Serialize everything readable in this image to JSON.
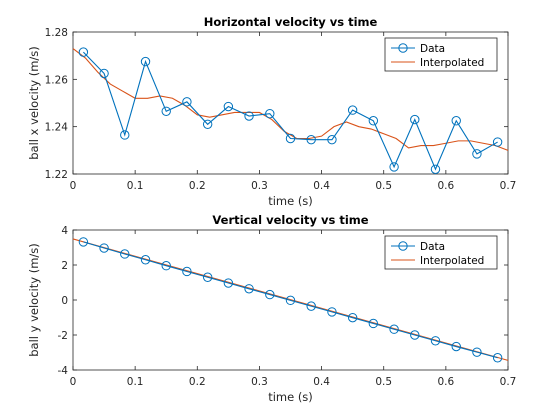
{
  "colors": {
    "data": "#0072BD",
    "interp": "#D95319",
    "axis": "#262626"
  },
  "chart_data": [
    {
      "type": "line",
      "title": "Horizontal velocity vs time",
      "xlabel": "time (s)",
      "ylabel": "ball x velocity (m/s)",
      "xlim": [
        0,
        0.7
      ],
      "ylim": [
        1.22,
        1.28
      ],
      "xticks": [
        0,
        0.1,
        0.2,
        0.3,
        0.4,
        0.5,
        0.6,
        0.7
      ],
      "xtick_labels": [
        "0",
        "0.1",
        "0.2",
        "0.3",
        "0.4",
        "0.5",
        "0.6",
        "0.7"
      ],
      "yticks": [
        1.22,
        1.24,
        1.26,
        1.28
      ],
      "ytick_labels": [
        "1.22",
        "1.24",
        "1.26",
        "1.28"
      ],
      "legend_position": "top-right",
      "series": [
        {
          "name": "Data",
          "style": "line-circle",
          "x": [
            0.0167,
            0.05,
            0.0833,
            0.1167,
            0.15,
            0.1833,
            0.2167,
            0.25,
            0.2833,
            0.3167,
            0.35,
            0.3833,
            0.4167,
            0.45,
            0.4833,
            0.5167,
            0.55,
            0.5833,
            0.6167,
            0.65,
            0.6833
          ],
          "y": [
            1.2715,
            1.2625,
            1.2365,
            1.2675,
            1.2465,
            1.2505,
            1.241,
            1.2485,
            1.2445,
            1.2455,
            1.235,
            1.2345,
            1.2345,
            1.247,
            1.2425,
            1.223,
            1.243,
            1.222,
            1.2425,
            1.2285,
            1.2335
          ]
        },
        {
          "name": "Interpolated",
          "style": "line",
          "x": [
            0,
            0.02,
            0.04,
            0.06,
            0.08,
            0.1,
            0.12,
            0.14,
            0.16,
            0.18,
            0.2,
            0.22,
            0.24,
            0.26,
            0.28,
            0.3,
            0.32,
            0.34,
            0.36,
            0.38,
            0.4,
            0.42,
            0.44,
            0.46,
            0.48,
            0.5,
            0.52,
            0.54,
            0.56,
            0.58,
            0.6,
            0.62,
            0.64,
            0.66,
            0.68,
            0.7
          ],
          "y": [
            1.273,
            1.269,
            1.263,
            1.258,
            1.255,
            1.252,
            1.252,
            1.253,
            1.252,
            1.249,
            1.245,
            1.244,
            1.245,
            1.246,
            1.246,
            1.246,
            1.243,
            1.238,
            1.235,
            1.235,
            1.236,
            1.24,
            1.242,
            1.24,
            1.239,
            1.237,
            1.235,
            1.231,
            1.232,
            1.232,
            1.233,
            1.234,
            1.234,
            1.233,
            1.232,
            1.23
          ]
        }
      ]
    },
    {
      "type": "line",
      "title": "Vertical velocity vs time",
      "xlabel": "time (s)",
      "ylabel": "ball y velocity (m/s)",
      "xlim": [
        0,
        0.7
      ],
      "ylim": [
        -4,
        4
      ],
      "xticks": [
        0,
        0.1,
        0.2,
        0.3,
        0.4,
        0.5,
        0.6,
        0.7
      ],
      "xtick_labels": [
        "0",
        "0.1",
        "0.2",
        "0.3",
        "0.4",
        "0.5",
        "0.6",
        "0.7"
      ],
      "yticks": [
        -4,
        -2,
        0,
        2,
        4
      ],
      "ytick_labels": [
        "-4",
        "-2",
        "0",
        "2",
        "4"
      ],
      "legend_position": "top-right",
      "series": [
        {
          "name": "Data",
          "style": "line-circle",
          "x": [
            0.0167,
            0.05,
            0.0833,
            0.1167,
            0.15,
            0.1833,
            0.2167,
            0.25,
            0.2833,
            0.3167,
            0.35,
            0.3833,
            0.4167,
            0.45,
            0.4833,
            0.5167,
            0.55,
            0.5833,
            0.6167,
            0.65,
            0.6833
          ],
          "y": [
            3.32,
            2.97,
            2.63,
            2.3,
            1.96,
            1.63,
            1.3,
            0.97,
            0.64,
            0.31,
            -0.02,
            -0.35,
            -0.68,
            -1.01,
            -1.34,
            -1.67,
            -2.0,
            -2.33,
            -2.66,
            -2.98,
            -3.3
          ]
        },
        {
          "name": "Interpolated",
          "style": "line",
          "x": [
            0,
            0.7
          ],
          "y": [
            3.49,
            -3.45
          ]
        }
      ]
    }
  ]
}
